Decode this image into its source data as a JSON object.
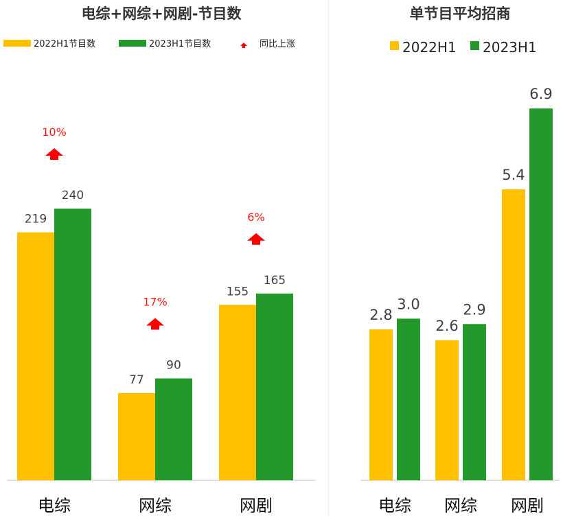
{
  "chart_data": [
    {
      "type": "bar",
      "title": "电综+网综+网剧-节目数",
      "categories": [
        "电综",
        "网综",
        "网剧"
      ],
      "series": [
        {
          "name": "2022H1节目数",
          "color": "#FFC000",
          "values": [
            219,
            77,
            155
          ]
        },
        {
          "name": "2023H1节目数",
          "color": "#22992A",
          "values": [
            240,
            90,
            165
          ]
        }
      ],
      "growth": {
        "name": "同比上涨",
        "color": "#FF0000",
        "values": [
          "10%",
          "17%",
          "6%"
        ]
      },
      "ylim": [
        0,
        300
      ],
      "xlabel": "",
      "ylabel": "",
      "grid": false
    },
    {
      "type": "bar",
      "title": "单节目平均招商",
      "categories": [
        "电综",
        "网综",
        "网剧"
      ],
      "series": [
        {
          "name": "2022H1",
          "color": "#FFC000",
          "values": [
            2.8,
            2.6,
            5.4
          ]
        },
        {
          "name": "2023H1",
          "color": "#22992A",
          "values": [
            3.0,
            2.9,
            6.9
          ]
        }
      ],
      "ylim": [
        0,
        7.5
      ],
      "xlabel": "",
      "ylabel": "",
      "grid": false
    }
  ]
}
